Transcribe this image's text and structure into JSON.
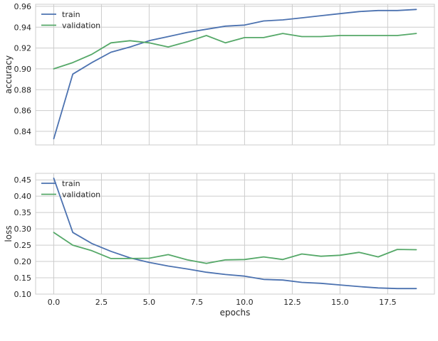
{
  "chart_data": [
    {
      "type": "line",
      "title": "",
      "xlabel": "",
      "ylabel": "accuracy",
      "x": [
        0,
        1,
        2,
        3,
        4,
        5,
        6,
        7,
        8,
        9,
        10,
        11,
        12,
        13,
        14,
        15,
        16,
        17,
        18,
        19
      ],
      "xlim": [
        -0.95,
        19.95
      ],
      "ylim": [
        0.827,
        0.962
      ],
      "xticks": [
        0.0,
        2.5,
        5.0,
        7.5,
        10.0,
        12.5,
        15.0,
        17.5
      ],
      "xtick_labels": [],
      "yticks": [
        0.84,
        0.86,
        0.88,
        0.9,
        0.92,
        0.94,
        0.96
      ],
      "ytick_labels": [
        "0.84",
        "0.86",
        "0.88",
        "0.90",
        "0.92",
        "0.94",
        "0.96"
      ],
      "grid": true,
      "legend": "top-left",
      "series": [
        {
          "name": "train",
          "color": "#4c72b0",
          "values": [
            0.833,
            0.895,
            0.906,
            0.916,
            0.921,
            0.927,
            0.931,
            0.935,
            0.938,
            0.941,
            0.942,
            0.946,
            0.947,
            0.949,
            0.951,
            0.953,
            0.955,
            0.956,
            0.956,
            0.957
          ]
        },
        {
          "name": "validation",
          "color": "#55a868",
          "values": [
            0.9,
            0.906,
            0.914,
            0.925,
            0.927,
            0.925,
            0.921,
            0.926,
            0.932,
            0.925,
            0.93,
            0.93,
            0.934,
            0.931,
            0.931,
            0.932,
            0.932,
            0.932,
            0.932,
            0.934
          ]
        }
      ]
    },
    {
      "type": "line",
      "title": "",
      "xlabel": "epochs",
      "ylabel": "loss",
      "x": [
        0,
        1,
        2,
        3,
        4,
        5,
        6,
        7,
        8,
        9,
        10,
        11,
        12,
        13,
        14,
        15,
        16,
        17,
        18,
        19
      ],
      "xlim": [
        -0.95,
        19.95
      ],
      "ylim": [
        0.1,
        0.47
      ],
      "xticks": [
        0.0,
        2.5,
        5.0,
        7.5,
        10.0,
        12.5,
        15.0,
        17.5
      ],
      "xtick_labels": [
        "0.0",
        "2.5",
        "5.0",
        "7.5",
        "10.0",
        "12.5",
        "15.0",
        "17.5"
      ],
      "yticks": [
        0.1,
        0.15,
        0.2,
        0.25,
        0.3,
        0.35,
        0.4,
        0.45
      ],
      "ytick_labels": [
        "0.10",
        "0.15",
        "0.20",
        "0.25",
        "0.30",
        "0.35",
        "0.40",
        "0.45"
      ],
      "grid": true,
      "legend": "top-left",
      "series": [
        {
          "name": "train",
          "color": "#4c72b0",
          "values": [
            0.455,
            0.289,
            0.255,
            0.231,
            0.211,
            0.197,
            0.186,
            0.177,
            0.167,
            0.16,
            0.155,
            0.145,
            0.143,
            0.136,
            0.133,
            0.128,
            0.123,
            0.119,
            0.117,
            0.117
          ]
        },
        {
          "name": "validation",
          "color": "#55a868",
          "values": [
            0.289,
            0.25,
            0.233,
            0.209,
            0.209,
            0.21,
            0.221,
            0.205,
            0.194,
            0.205,
            0.206,
            0.214,
            0.206,
            0.223,
            0.216,
            0.219,
            0.228,
            0.214,
            0.237,
            0.236
          ]
        }
      ]
    }
  ]
}
